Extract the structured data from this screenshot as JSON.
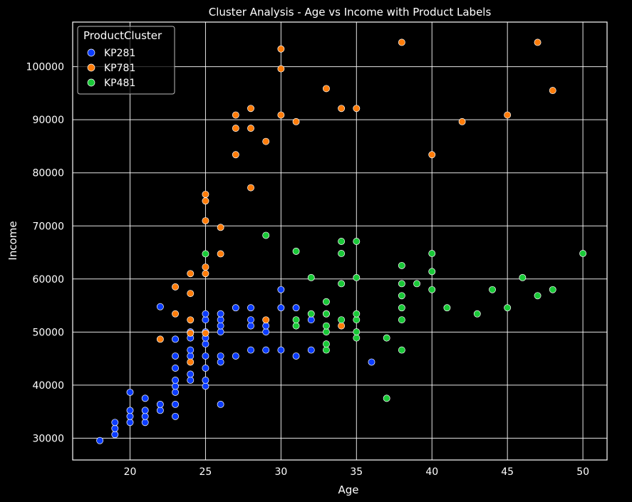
{
  "chart_data": {
    "type": "scatter",
    "title": "Cluster Analysis - Age vs Income with Product Labels",
    "xlabel": "Age",
    "ylabel": "Income",
    "xlim": [
      16.2,
      51.6
    ],
    "ylim": [
      25900,
      108400
    ],
    "xticks": [
      20,
      25,
      30,
      35,
      40,
      45,
      50
    ],
    "yticks": [
      30000,
      40000,
      50000,
      60000,
      70000,
      80000,
      90000,
      100000
    ],
    "grid": true,
    "background": "#000000",
    "legend": {
      "title": "ProductCluster",
      "placement": "top-left"
    },
    "series": [
      {
        "name": "KP281",
        "color": "#0b3cff",
        "points": [
          [
            18,
            29562
          ],
          [
            19,
            30699
          ],
          [
            19,
            31836
          ],
          [
            19,
            32973
          ],
          [
            20,
            32973
          ],
          [
            20,
            34110
          ],
          [
            20,
            35247
          ],
          [
            20,
            38658
          ],
          [
            21,
            32973
          ],
          [
            21,
            34110
          ],
          [
            21,
            35247
          ],
          [
            21,
            37521
          ],
          [
            22,
            35247
          ],
          [
            22,
            36384
          ],
          [
            22,
            54781
          ],
          [
            23,
            34110
          ],
          [
            23,
            36384
          ],
          [
            23,
            38658
          ],
          [
            23,
            39795
          ],
          [
            23,
            40932
          ],
          [
            23,
            43206
          ],
          [
            23,
            45480
          ],
          [
            23,
            48658
          ],
          [
            24,
            40932
          ],
          [
            24,
            42069
          ],
          [
            24,
            45480
          ],
          [
            24,
            46617
          ],
          [
            24,
            48891
          ],
          [
            24,
            50028
          ],
          [
            25,
            39795
          ],
          [
            25,
            40932
          ],
          [
            25,
            43206
          ],
          [
            25,
            45480
          ],
          [
            25,
            47754
          ],
          [
            25,
            48891
          ],
          [
            25,
            50028
          ],
          [
            25,
            52302
          ],
          [
            25,
            53439
          ],
          [
            26,
            36384
          ],
          [
            26,
            44343
          ],
          [
            26,
            45480
          ],
          [
            26,
            50028
          ],
          [
            26,
            51165
          ],
          [
            26,
            52302
          ],
          [
            26,
            53439
          ],
          [
            27,
            45480
          ],
          [
            27,
            54576
          ],
          [
            28,
            46617
          ],
          [
            28,
            51165
          ],
          [
            28,
            52302
          ],
          [
            28,
            54576
          ],
          [
            29,
            46617
          ],
          [
            29,
            50028
          ],
          [
            29,
            51165
          ],
          [
            30,
            46617
          ],
          [
            30,
            54576
          ],
          [
            30,
            57987
          ],
          [
            31,
            45480
          ],
          [
            31,
            54576
          ],
          [
            32,
            46617
          ],
          [
            32,
            52302
          ],
          [
            33,
            53439
          ],
          [
            36,
            44343
          ]
        ]
      },
      {
        "name": "KP781",
        "color": "#ff7c0a",
        "points": [
          [
            22,
            48658
          ],
          [
            23,
            53439
          ],
          [
            23,
            58516
          ],
          [
            24,
            44343
          ],
          [
            24,
            49801
          ],
          [
            24,
            52291
          ],
          [
            24,
            57271
          ],
          [
            24,
            61006
          ],
          [
            25,
            49801
          ],
          [
            25,
            61006
          ],
          [
            25,
            62251
          ],
          [
            25,
            70966
          ],
          [
            25,
            74701
          ],
          [
            25,
            75946
          ],
          [
            26,
            64741
          ],
          [
            26,
            69721
          ],
          [
            27,
            83416
          ],
          [
            27,
            88396
          ],
          [
            27,
            90886
          ],
          [
            28,
            77191
          ],
          [
            28,
            88396
          ],
          [
            28,
            92131
          ],
          [
            29,
            52291
          ],
          [
            29,
            85906
          ],
          [
            30,
            90886
          ],
          [
            30,
            99601
          ],
          [
            30,
            103336
          ],
          [
            31,
            89641
          ],
          [
            33,
            95866
          ],
          [
            34,
            51165
          ],
          [
            34,
            92131
          ],
          [
            35,
            92131
          ],
          [
            38,
            104581
          ],
          [
            40,
            83416
          ],
          [
            42,
            89641
          ],
          [
            45,
            90886
          ],
          [
            47,
            104581
          ],
          [
            48,
            95508
          ]
        ]
      },
      {
        "name": "KP481",
        "color": "#1ac938",
        "points": [
          [
            25,
            64741
          ],
          [
            29,
            68220
          ],
          [
            31,
            51165
          ],
          [
            31,
            52302
          ],
          [
            31,
            65220
          ],
          [
            32,
            53439
          ],
          [
            32,
            60261
          ],
          [
            33,
            46617
          ],
          [
            33,
            47754
          ],
          [
            33,
            50028
          ],
          [
            33,
            51165
          ],
          [
            33,
            53439
          ],
          [
            33,
            55713
          ],
          [
            34,
            52302
          ],
          [
            34,
            59124
          ],
          [
            34,
            64809
          ],
          [
            34,
            67083
          ],
          [
            35,
            48891
          ],
          [
            35,
            50028
          ],
          [
            35,
            52302
          ],
          [
            35,
            53439
          ],
          [
            35,
            60261
          ],
          [
            35,
            67083
          ],
          [
            37,
            37521
          ],
          [
            37,
            48891
          ],
          [
            38,
            46617
          ],
          [
            38,
            52302
          ],
          [
            38,
            54576
          ],
          [
            38,
            56850
          ],
          [
            38,
            59124
          ],
          [
            38,
            62535
          ],
          [
            39,
            59124
          ],
          [
            40,
            57987
          ],
          [
            40,
            61398
          ],
          [
            40,
            64809
          ],
          [
            41,
            54576
          ],
          [
            43,
            53439
          ],
          [
            44,
            57987
          ],
          [
            45,
            54576
          ],
          [
            46,
            60261
          ],
          [
            47,
            56850
          ],
          [
            48,
            57987
          ],
          [
            50,
            64809
          ]
        ]
      }
    ]
  }
}
